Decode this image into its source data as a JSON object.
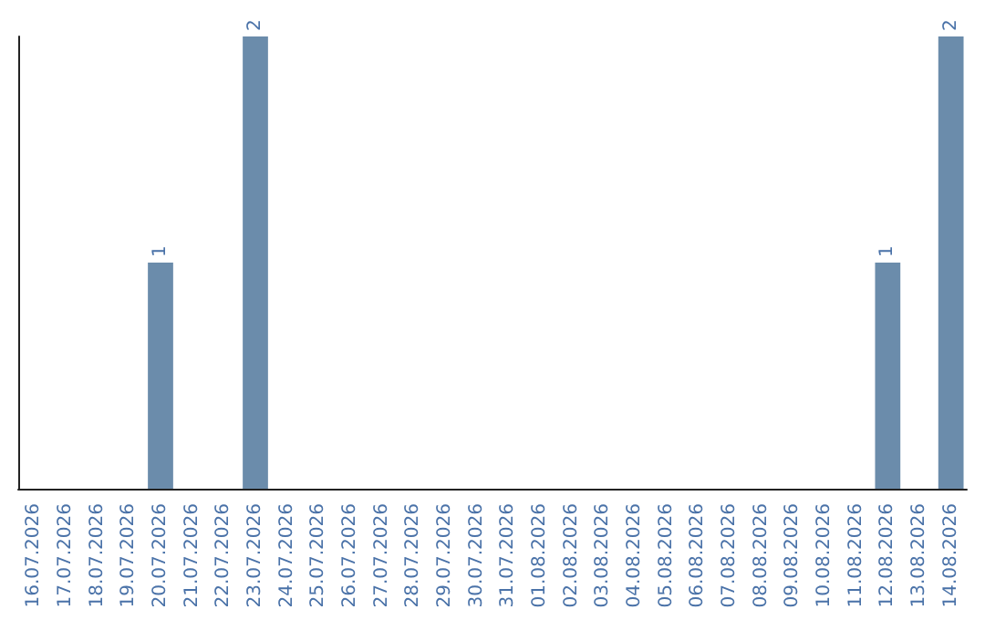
{
  "chart_data": {
    "type": "bar",
    "categories": [
      "16.07.2026",
      "17.07.2026",
      "18.07.2026",
      "19.07.2026",
      "20.07.2026",
      "21.07.2026",
      "22.07.2026",
      "23.07.2026",
      "24.07.2026",
      "25.07.2026",
      "26.07.2026",
      "27.07.2026",
      "28.07.2026",
      "29.07.2026",
      "30.07.2026",
      "31.07.2026",
      "01.08.2026",
      "02.08.2026",
      "03.08.2026",
      "04.08.2026",
      "05.08.2026",
      "06.08.2026",
      "07.08.2026",
      "08.08.2026",
      "09.08.2026",
      "10.08.2026",
      "11.08.2026",
      "12.08.2026",
      "13.08.2026",
      "14.08.2026"
    ],
    "values": [
      0,
      0,
      0,
      0,
      1,
      0,
      0,
      2,
      0,
      0,
      0,
      0,
      0,
      0,
      0,
      0,
      0,
      0,
      0,
      0,
      0,
      0,
      0,
      0,
      0,
      0,
      0,
      1,
      0,
      2
    ],
    "value_labels": [
      null,
      null,
      null,
      null,
      "1",
      null,
      null,
      "2",
      null,
      null,
      null,
      null,
      null,
      null,
      null,
      null,
      null,
      null,
      null,
      null,
      null,
      null,
      null,
      null,
      null,
      null,
      null,
      "1",
      null,
      "2"
    ],
    "color": "#6b8cab"
  }
}
